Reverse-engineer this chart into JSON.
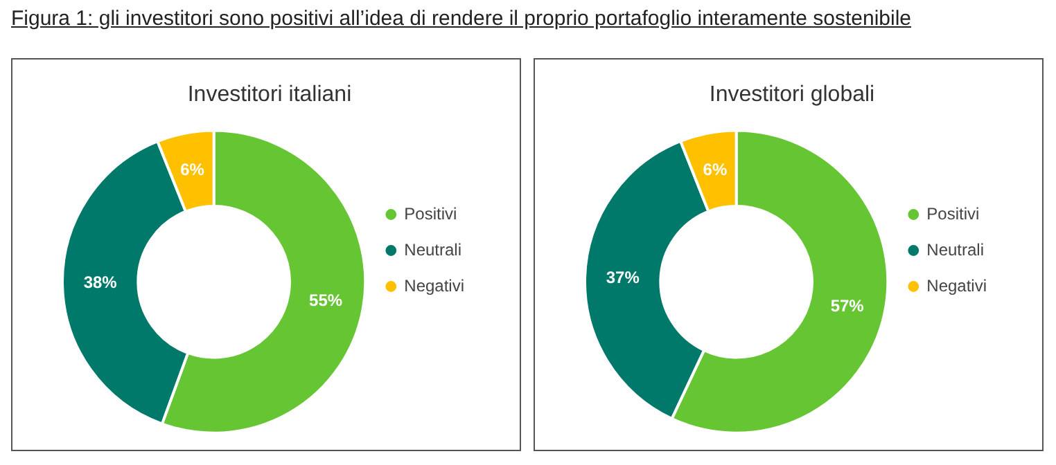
{
  "chart_data": [
    {
      "type": "other",
      "title": "Figura 1: gli investitori sono positivi all’idea di rendere il proprio portafoglio interamente sostenibile"
    },
    {
      "type": "donut",
      "title": "Investitori italiani",
      "categories": [
        "Positivi",
        "Neutrali",
        "Negativi"
      ],
      "values": [
        55,
        38,
        6
      ],
      "colors": [
        "#66c533",
        "#00786a",
        "#ffc000"
      ],
      "value_labels": [
        "55%",
        "38%",
        "6%"
      ],
      "legend": "right"
    },
    {
      "type": "donut",
      "title": "Investitori globali",
      "categories": [
        "Positivi",
        "Neutrali",
        "Negativi"
      ],
      "values": [
        57,
        37,
        6
      ],
      "colors": [
        "#66c533",
        "#00786a",
        "#ffc000"
      ],
      "value_labels": [
        "57%",
        "37%",
        "6%"
      ],
      "legend": "right"
    }
  ]
}
